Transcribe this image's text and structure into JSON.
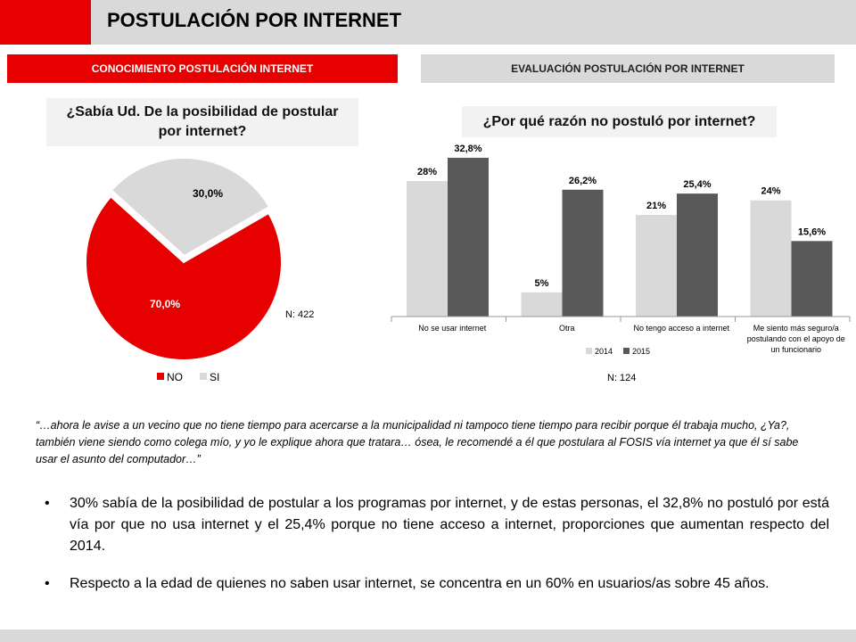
{
  "header": {
    "title": "POSTULACIÓN POR INTERNET"
  },
  "sections": {
    "left": "CONOCIMIENTO POSTULACIÓN INTERNET",
    "right": "EVALUACIÓN POSTULACIÓN POR INTERNET"
  },
  "questions": {
    "left_line1": "¿Sabía Ud. De la posibilidad de postular",
    "left_line2": "por internet?",
    "right": "¿Por qué razón no postuló por internet?"
  },
  "chart_data": [
    {
      "type": "pie",
      "slices": [
        {
          "label": "NO",
          "value": 70.0,
          "display": "70,0%",
          "color": "#e60000"
        },
        {
          "label": "SI",
          "value": 30.0,
          "display": "30,0%",
          "color": "#d9d9d9"
        }
      ],
      "legend": [
        "NO",
        "SI"
      ],
      "legend_placement": "bottom",
      "n_label": "N: 422"
    },
    {
      "type": "bar",
      "categories": [
        [
          "No se usar internet"
        ],
        [
          "Otra"
        ],
        [
          "No tengo acceso a internet"
        ],
        [
          "Me siento más seguro/a",
          "postulando con el apoyo de",
          "un funcionario"
        ]
      ],
      "series": [
        {
          "name": "2014",
          "values": [
            28,
            5,
            21,
            24
          ],
          "labels": [
            "28%",
            "5%",
            "21%",
            "24%"
          ],
          "color": "#d9d9d9"
        },
        {
          "name": "2015",
          "values": [
            32.8,
            26.2,
            25.4,
            15.6
          ],
          "labels": [
            "32,8%",
            "26,2%",
            "25,4%",
            "15,6%"
          ],
          "color": "#595959"
        }
      ],
      "ylim": [
        0,
        35
      ],
      "legend_placement": "bottom",
      "n_label": "N: 124"
    }
  ],
  "quote": "“…ahora le avise a un vecino que no tiene tiempo para acercarse a la municipalidad ni tampoco tiene tiempo para recibir porque él trabaja mucho, ¿Ya?, también viene siendo como colega mío, y yo le explique ahora que tratara… ósea, le recomendé a él que postulara al FOSIS vía internet ya que él sí sabe usar el asunto del computador…”",
  "bullets": [
    "30% sabía de la posibilidad de postular a los programas por internet, y de estas personas, el 32,8% no postuló por está vía por que no usa internet y el 25,4% porque no tiene acceso a internet, proporciones que aumentan respecto del 2014.",
    "Respecto a la edad de quienes no saben usar internet, se concentra en un 60% en usuarios/as sobre 45 años."
  ],
  "bullet_glyph": "•"
}
